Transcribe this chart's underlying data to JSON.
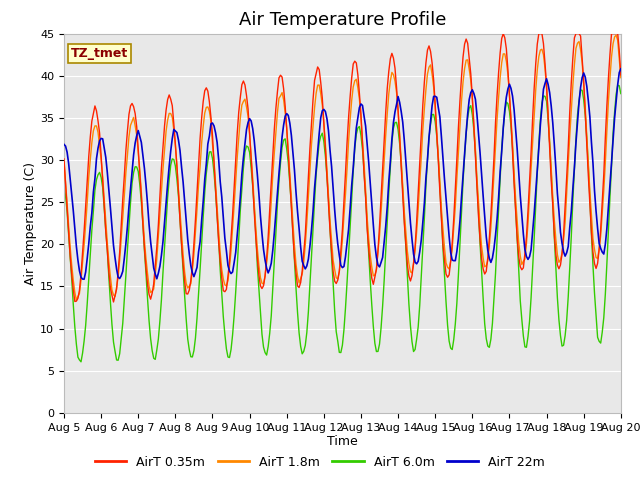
{
  "title": "Air Temperature Profile",
  "xlabel": "Time",
  "ylabel": "Air Temperature (C)",
  "ylim": [
    0,
    45
  ],
  "yticks": [
    0,
    5,
    10,
    15,
    20,
    25,
    30,
    35,
    40,
    45
  ],
  "date_labels": [
    "Aug 5",
    "Aug 6",
    "Aug 7",
    "Aug 8",
    "Aug 9",
    "Aug 10",
    "Aug 11",
    "Aug 12",
    "Aug 13",
    "Aug 14",
    "Aug 15",
    "Aug 16",
    "Aug 17",
    "Aug 18",
    "Aug 19",
    "Aug 20"
  ],
  "annotation_text": "TZ_tmet",
  "annotation_color": "#8B0000",
  "annotation_bg": "#FFFFCC",
  "annotation_edge": "#AA8800",
  "line_colors": [
    "#FF2200",
    "#FF8800",
    "#33CC00",
    "#0000CC"
  ],
  "line_labels": [
    "AirT 0.35m",
    "AirT 1.8m",
    "AirT 6.0m",
    "AirT 22m"
  ],
  "bg_color": "#E8E8E8",
  "fig_bg": "#FFFFFF",
  "grid_color": "#FFFFFF",
  "title_fontsize": 13,
  "axis_label_fontsize": 9,
  "tick_fontsize": 8,
  "legend_fontsize": 9
}
